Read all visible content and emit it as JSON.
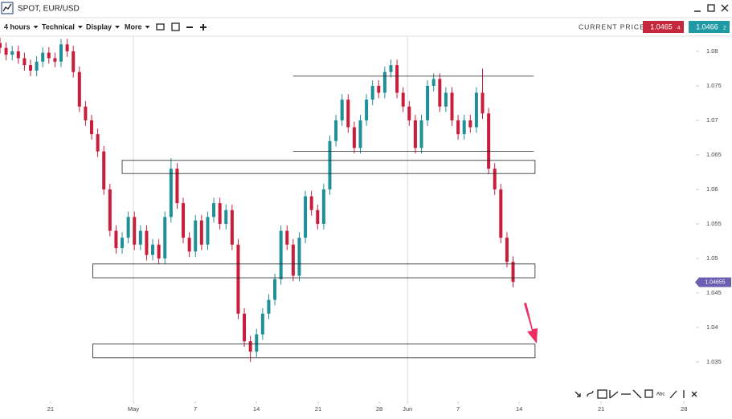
{
  "ui": {
    "window_title": "SPOT, EUR/USD",
    "menus": [
      "4 hours",
      "Technical",
      "Display",
      "More"
    ],
    "current_price_label": "CURRENT PRICE:",
    "bid": {
      "main": "1.0465",
      "pip": "4"
    },
    "ask": {
      "main": "1.0466",
      "pip": "2"
    },
    "tool_text": "Abc"
  },
  "chart_data": {
    "type": "candlestick",
    "x": [
      0,
      0.5,
      1,
      1.5,
      2,
      2.5,
      3,
      3.5,
      4,
      4.5,
      5,
      5.5,
      6,
      6.5,
      7,
      7.5,
      8,
      8.5,
      9,
      9.5,
      10,
      10.5,
      11,
      11.5,
      12,
      12.5,
      13,
      13.5,
      14,
      14.5,
      15,
      15.5,
      16,
      16.5,
      17,
      17.5,
      18,
      18.5,
      19,
      19.5,
      20,
      20.5,
      21,
      21.5,
      22,
      22.5,
      23,
      23.5,
      24,
      24.5,
      25,
      25.5,
      26,
      26.5,
      27,
      27.5,
      28,
      28.5,
      29,
      29.5,
      30,
      30.5,
      31,
      31.5,
      32,
      32.5,
      33,
      33.5,
      34,
      34.5,
      35,
      35.5,
      36,
      36.5,
      37,
      37.5,
      38,
      38.5,
      39,
      39.5,
      40,
      40.5,
      41,
      41.5,
      42
    ],
    "open": [
      1.0812,
      1.0805,
      1.0795,
      1.08,
      1.079,
      1.078,
      1.0772,
      1.0785,
      1.0798,
      1.079,
      1.0785,
      1.081,
      1.08,
      1.077,
      1.072,
      1.07,
      1.068,
      1.0655,
      1.06,
      1.054,
      1.0515,
      1.053,
      1.056,
      1.052,
      1.054,
      1.0505,
      1.052,
      1.05,
      1.056,
      1.063,
      1.058,
      1.053,
      1.051,
      1.0555,
      1.052,
      1.056,
      1.058,
      1.055,
      1.057,
      1.052,
      1.042,
      1.038,
      1.0365,
      1.039,
      1.042,
      1.044,
      1.047,
      1.054,
      1.052,
      1.0475,
      1.053,
      1.059,
      1.057,
      1.055,
      1.06,
      1.067,
      1.07,
      1.073,
      1.069,
      1.066,
      1.07,
      1.073,
      1.075,
      1.074,
      1.077,
      1.078,
      1.074,
      1.072,
      1.07,
      1.066,
      1.07,
      1.075,
      1.076,
      1.072,
      1.074,
      1.07,
      1.068,
      1.07,
      1.069,
      1.074,
      1.071,
      1.063,
      1.06,
      1.053,
      1.0495
    ],
    "high": [
      1.082,
      1.0813,
      1.0808,
      1.0808,
      1.0798,
      1.0788,
      1.0793,
      1.0806,
      1.0806,
      1.0798,
      1.0818,
      1.0818,
      1.0808,
      1.0778,
      1.0728,
      1.0708,
      1.0688,
      1.0663,
      1.0608,
      1.0548,
      1.0538,
      1.0568,
      1.0568,
      1.0548,
      1.0548,
      1.0528,
      1.0528,
      1.0568,
      1.0645,
      1.0638,
      1.0588,
      1.0538,
      1.0563,
      1.0563,
      1.0568,
      1.0588,
      1.0588,
      1.0578,
      1.0578,
      1.0528,
      1.0428,
      1.0388,
      1.0398,
      1.0428,
      1.0448,
      1.0478,
      1.0548,
      1.0548,
      1.0528,
      1.0538,
      1.0598,
      1.0598,
      1.0578,
      1.0608,
      1.0678,
      1.0708,
      1.0738,
      1.0738,
      1.0698,
      1.0708,
      1.0738,
      1.0758,
      1.0758,
      1.0778,
      1.0788,
      1.0788,
      1.0748,
      1.0728,
      1.0708,
      1.0708,
      1.0758,
      1.0768,
      1.0768,
      1.0748,
      1.0748,
      1.0708,
      1.0708,
      1.0708,
      1.0748,
      1.0775,
      1.0718,
      1.0638,
      1.0608,
      1.0538,
      1.0503
    ],
    "low": [
      1.0797,
      1.0787,
      1.0787,
      1.0782,
      1.0772,
      1.0764,
      1.0764,
      1.0777,
      1.0782,
      1.0777,
      1.0777,
      1.0792,
      1.0762,
      1.0712,
      1.0692,
      1.0672,
      1.0647,
      1.0592,
      1.0532,
      1.0507,
      1.0507,
      1.0522,
      1.0512,
      1.0512,
      1.0497,
      1.0497,
      1.0492,
      1.0492,
      1.0552,
      1.0572,
      1.0522,
      1.0502,
      1.0502,
      1.0512,
      1.0512,
      1.0552,
      1.0542,
      1.0542,
      1.0512,
      1.0412,
      1.0372,
      1.035,
      1.0357,
      1.0382,
      1.0412,
      1.0432,
      1.0462,
      1.0512,
      1.0467,
      1.0467,
      1.0522,
      1.0562,
      1.0542,
      1.0542,
      1.0592,
      1.0662,
      1.0692,
      1.0682,
      1.0652,
      1.0652,
      1.0692,
      1.0722,
      1.0732,
      1.0732,
      1.0762,
      1.0732,
      1.0712,
      1.0692,
      1.0652,
      1.0652,
      1.0692,
      1.0742,
      1.0712,
      1.0712,
      1.0692,
      1.0672,
      1.0672,
      1.0682,
      1.0682,
      1.0702,
      1.0622,
      1.0592,
      1.0522,
      1.0487,
      1.0458
    ],
    "close": [
      1.0805,
      1.0795,
      1.08,
      1.079,
      1.078,
      1.0772,
      1.0785,
      1.0798,
      1.079,
      1.0785,
      1.081,
      1.08,
      1.077,
      1.072,
      1.07,
      1.068,
      1.0655,
      1.06,
      1.054,
      1.0515,
      1.053,
      1.056,
      1.052,
      1.054,
      1.0505,
      1.052,
      1.05,
      1.056,
      1.063,
      1.058,
      1.053,
      1.051,
      1.0555,
      1.052,
      1.056,
      1.058,
      1.055,
      1.057,
      1.052,
      1.042,
      1.038,
      1.0365,
      1.039,
      1.042,
      1.044,
      1.047,
      1.054,
      1.052,
      1.0475,
      1.053,
      1.059,
      1.057,
      1.055,
      1.06,
      1.067,
      1.07,
      1.073,
      1.069,
      1.066,
      1.07,
      1.073,
      1.075,
      1.074,
      1.077,
      1.078,
      1.074,
      1.072,
      1.07,
      1.066,
      1.07,
      1.075,
      1.076,
      1.072,
      1.074,
      1.07,
      1.068,
      1.07,
      1.069,
      1.074,
      1.071,
      1.063,
      1.06,
      1.053,
      1.0495,
      1.0466
    ],
    "up_color": "#1f8f98",
    "down_color": "#c81e3c",
    "xlim": [
      0,
      56.7
    ],
    "ylim": [
      1.0293,
      1.0822
    ],
    "xticks": [
      {
        "value": 4.14,
        "label": "21"
      },
      {
        "value": 10.92,
        "label": "May"
      },
      {
        "value": 15.99,
        "label": "7"
      },
      {
        "value": 20.99,
        "label": "14"
      },
      {
        "value": 26.05,
        "label": "21"
      },
      {
        "value": 31.05,
        "label": "28"
      },
      {
        "value": 33.36,
        "label": "Jun"
      },
      {
        "value": 37.5,
        "label": "7"
      },
      {
        "value": 42.5,
        "label": "14"
      },
      {
        "value": 49.21,
        "label": "21"
      },
      {
        "value": 55.99,
        "label": "28"
      }
    ],
    "yticks": [
      1.035,
      1.04,
      1.045,
      1.05,
      1.055,
      1.06,
      1.065,
      1.07,
      1.075,
      1.08
    ],
    "month_grid": true,
    "zones": [
      {
        "low": 1.0623,
        "high": 1.0642,
        "from": 10.0,
        "to": 43.8
      },
      {
        "low": 1.0472,
        "high": 1.0492,
        "from": 7.6,
        "to": 43.8
      },
      {
        "low": 1.0356,
        "high": 1.0376,
        "from": 7.6,
        "to": 43.8
      }
    ],
    "levels": [
      {
        "value": 1.0764,
        "from": 24.0,
        "to": 43.7
      },
      {
        "value": 1.0655,
        "from": 24.0,
        "to": 43.7
      }
    ],
    "price_tag": {
      "value": 1.04655,
      "label": "1.04655"
    }
  }
}
